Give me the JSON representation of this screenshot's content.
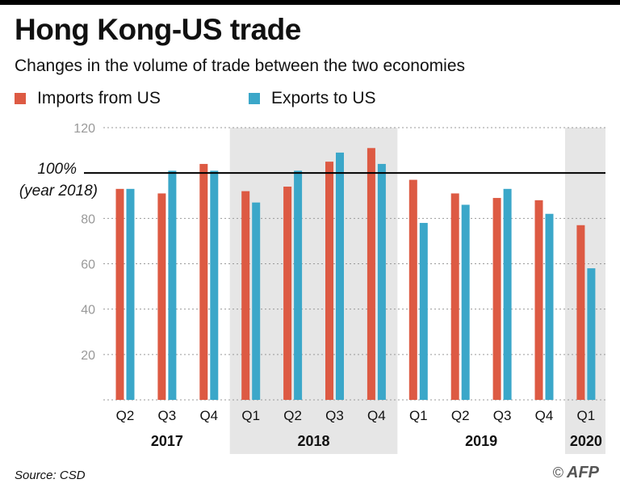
{
  "header": {
    "title": "Hong Kong-US trade",
    "subtitle": "Changes in the volume of trade between the two economies"
  },
  "legend": {
    "imports_label": "Imports from US",
    "exports_label": "Exports to US"
  },
  "reference": {
    "label_line1": "100%",
    "label_line2": "(year 2018)"
  },
  "footer": {
    "source": "Source: CSD",
    "copyright": "©",
    "agency": "AFP"
  },
  "colors": {
    "imports": "#dd5a43",
    "exports": "#3ba7c9",
    "shade": "#e6e6e6",
    "grid": "#9a9a9a",
    "reference_line": "#000000"
  },
  "chart_data": {
    "type": "bar",
    "title": "Hong Kong-US trade",
    "subtitle": "Changes in the volume of trade between the two economies",
    "categories": [
      "Q2",
      "Q3",
      "Q4",
      "Q1",
      "Q2",
      "Q3",
      "Q4",
      "Q1",
      "Q2",
      "Q3",
      "Q4",
      "Q1"
    ],
    "year_groups": [
      {
        "year": "2017",
        "start": 0,
        "end": 2,
        "shaded": false
      },
      {
        "year": "2018",
        "start": 3,
        "end": 6,
        "shaded": true
      },
      {
        "year": "2019",
        "start": 7,
        "end": 10,
        "shaded": false
      },
      {
        "year": "2020",
        "start": 11,
        "end": 11,
        "shaded": true
      }
    ],
    "series": [
      {
        "name": "Imports from US",
        "values": [
          93,
          91,
          104,
          92,
          94,
          105,
          111,
          97,
          91,
          89,
          88,
          77
        ]
      },
      {
        "name": "Exports to US",
        "values": [
          93,
          101,
          101,
          87,
          101,
          109,
          104,
          78,
          86,
          93,
          82,
          58
        ]
      }
    ],
    "ylim": [
      0,
      120
    ],
    "yticks": [
      20,
      40,
      60,
      80,
      100,
      120
    ],
    "reference_value": 100,
    "grid": true,
    "legend_position": "top-left"
  }
}
